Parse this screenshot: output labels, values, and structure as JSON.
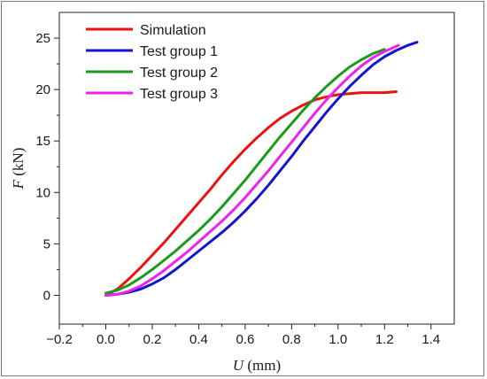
{
  "chart_data": {
    "type": "line",
    "title": "",
    "xlabel_var": "U",
    "xlabel_unit": " (mm)",
    "ylabel_var": "F",
    "ylabel_unit": " (kN)",
    "xlim": [
      -0.2,
      1.5
    ],
    "ylim": [
      -2.8,
      27.5
    ],
    "x_ticks": [
      -0.2,
      0.0,
      0.2,
      0.4,
      0.6,
      0.8,
      1.0,
      1.2,
      1.4
    ],
    "x_tick_labels": [
      "−0.2",
      "0.0",
      "0.2",
      "0.4",
      "0.6",
      "0.8",
      "1.0",
      "1.2",
      "1.4"
    ],
    "y_ticks": [
      0,
      5,
      10,
      15,
      20,
      25
    ],
    "y_tick_labels": [
      "0",
      "5",
      "10",
      "15",
      "20",
      "25"
    ],
    "grid": false,
    "legend_position": "top-left",
    "series": [
      {
        "name": "Simulation",
        "color": "#ee1111",
        "x": [
          0.0,
          0.05,
          0.1,
          0.15,
          0.2,
          0.25,
          0.3,
          0.35,
          0.4,
          0.45,
          0.5,
          0.55,
          0.6,
          0.65,
          0.7,
          0.75,
          0.8,
          0.85,
          0.9,
          0.95,
          1.0,
          1.05,
          1.1,
          1.15,
          1.2,
          1.25
        ],
        "y": [
          0.0,
          0.6,
          1.6,
          2.7,
          3.9,
          5.1,
          6.4,
          7.7,
          9.0,
          10.3,
          11.7,
          13.0,
          14.2,
          15.3,
          16.3,
          17.2,
          17.9,
          18.5,
          19.0,
          19.3,
          19.5,
          19.6,
          19.7,
          19.7,
          19.7,
          19.8
        ]
      },
      {
        "name": "Test group 1",
        "color": "#1515cc",
        "x": [
          0.0,
          0.05,
          0.1,
          0.15,
          0.2,
          0.25,
          0.3,
          0.35,
          0.4,
          0.45,
          0.5,
          0.55,
          0.6,
          0.65,
          0.7,
          0.75,
          0.8,
          0.85,
          0.9,
          0.95,
          1.0,
          1.05,
          1.1,
          1.15,
          1.2,
          1.25,
          1.3,
          1.34
        ],
        "y": [
          0.0,
          0.1,
          0.3,
          0.6,
          1.1,
          1.7,
          2.5,
          3.4,
          4.3,
          5.2,
          6.1,
          7.1,
          8.2,
          9.4,
          10.7,
          12.1,
          13.5,
          15.0,
          16.4,
          17.8,
          19.1,
          20.3,
          21.4,
          22.4,
          23.2,
          23.8,
          24.3,
          24.6
        ]
      },
      {
        "name": "Test group 2",
        "color": "#1a9a1a",
        "x": [
          0.0,
          0.05,
          0.1,
          0.15,
          0.2,
          0.25,
          0.3,
          0.35,
          0.4,
          0.45,
          0.5,
          0.55,
          0.6,
          0.65,
          0.7,
          0.75,
          0.8,
          0.85,
          0.9,
          0.95,
          1.0,
          1.05,
          1.1,
          1.15,
          1.2
        ],
        "y": [
          0.2,
          0.5,
          1.0,
          1.7,
          2.5,
          3.4,
          4.3,
          5.3,
          6.3,
          7.4,
          8.6,
          9.9,
          11.2,
          12.6,
          14.0,
          15.4,
          16.7,
          18.0,
          19.2,
          20.3,
          21.3,
          22.2,
          22.9,
          23.5,
          23.9
        ]
      },
      {
        "name": "Test group 3",
        "color": "#ee22ee",
        "x": [
          0.0,
          0.05,
          0.1,
          0.15,
          0.2,
          0.25,
          0.3,
          0.35,
          0.4,
          0.45,
          0.5,
          0.55,
          0.6,
          0.65,
          0.7,
          0.75,
          0.8,
          0.85,
          0.9,
          0.95,
          1.0,
          1.05,
          1.1,
          1.15,
          1.2,
          1.26
        ],
        "y": [
          0.0,
          0.1,
          0.4,
          0.9,
          1.6,
          2.4,
          3.3,
          4.2,
          5.2,
          6.2,
          7.2,
          8.3,
          9.5,
          10.8,
          12.1,
          13.5,
          14.9,
          16.3,
          17.7,
          19.0,
          20.2,
          21.3,
          22.3,
          23.1,
          23.7,
          24.3
        ]
      }
    ]
  }
}
